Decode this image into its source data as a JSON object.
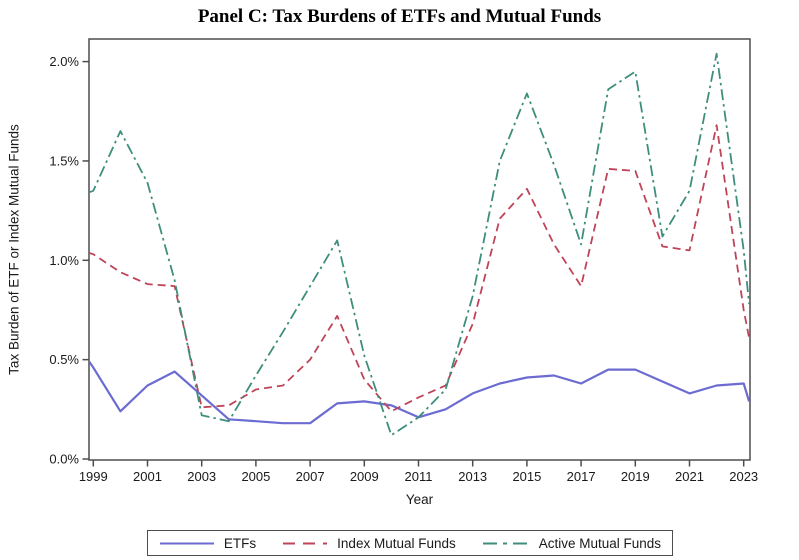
{
  "title": "Panel C: Tax Burdens of ETFs and Mutual Funds",
  "axes": {
    "x_label": "Year",
    "y_label": "Tax Burden of ETF or Index Mutual Funds",
    "x_ticks": [
      1999,
      2001,
      2003,
      2005,
      2007,
      2009,
      2011,
      2013,
      2015,
      2017,
      2019,
      2021,
      2023
    ],
    "y_ticks": [
      "0.0%",
      "0.5%",
      "1.0%",
      "1.5%",
      "2.0%"
    ]
  },
  "legend": {
    "entries": [
      {
        "label": "ETFs",
        "color": "#6B6BD2",
        "style": "solid"
      },
      {
        "label": "Index Mutual Funds",
        "color": "#BF4458",
        "style": "dashed"
      },
      {
        "label": "Active Mutual Funds",
        "color": "#3E8E7C",
        "style": "dashdot"
      }
    ]
  },
  "chart_data": {
    "type": "line",
    "title": "Panel C: Tax Burdens of ETFs and Mutual Funds",
    "xlabel": "Year",
    "ylabel": "Tax Burden of ETF or Index Mutual Funds",
    "xlim": [
      1998.8,
      2023.25
    ],
    "ylim_percent": [
      0.0,
      2.1
    ],
    "y_tick_percent": [
      0.0,
      0.5,
      1.0,
      1.5,
      2.0
    ],
    "grid": false,
    "legend_position": "bottom",
    "x": [
      1998.8,
      1999,
      2000,
      2001,
      2002,
      2003,
      2004,
      2005,
      2006,
      2007,
      2008,
      2009,
      2010,
      2011,
      2012,
      2013,
      2014,
      2015,
      2016,
      2017,
      2018,
      2019,
      2020,
      2021,
      2022,
      2023,
      2023.2
    ],
    "series": [
      {
        "name": "ETFs",
        "color": "#6B6BD2",
        "style": "solid",
        "y_percent": [
          0.5,
          0.46,
          0.24,
          0.37,
          0.44,
          0.32,
          0.2,
          0.19,
          0.18,
          0.18,
          0.28,
          0.29,
          0.27,
          0.21,
          0.25,
          0.33,
          0.38,
          0.41,
          0.42,
          0.38,
          0.45,
          0.45,
          0.39,
          0.33,
          0.37,
          0.38,
          0.29
        ]
      },
      {
        "name": "Index Mutual Funds",
        "color": "#BF4458",
        "style": "dashed",
        "y_percent": [
          1.04,
          1.03,
          0.94,
          0.88,
          0.87,
          0.26,
          0.27,
          0.35,
          0.37,
          0.5,
          0.72,
          0.4,
          0.24,
          0.31,
          0.37,
          0.68,
          1.21,
          1.36,
          1.08,
          0.87,
          1.46,
          1.45,
          1.07,
          1.05,
          1.68,
          0.75,
          0.61
        ]
      },
      {
        "name": "Active Mutual Funds",
        "color": "#3E8E7C",
        "style": "dashdot",
        "y_percent": [
          1.34,
          1.35,
          1.65,
          1.39,
          0.9,
          0.22,
          0.19,
          0.42,
          0.64,
          0.87,
          1.1,
          0.52,
          0.12,
          0.21,
          0.35,
          0.82,
          1.5,
          1.84,
          1.48,
          1.08,
          1.86,
          1.95,
          1.12,
          1.35,
          2.04,
          1.05,
          0.78
        ]
      }
    ]
  }
}
